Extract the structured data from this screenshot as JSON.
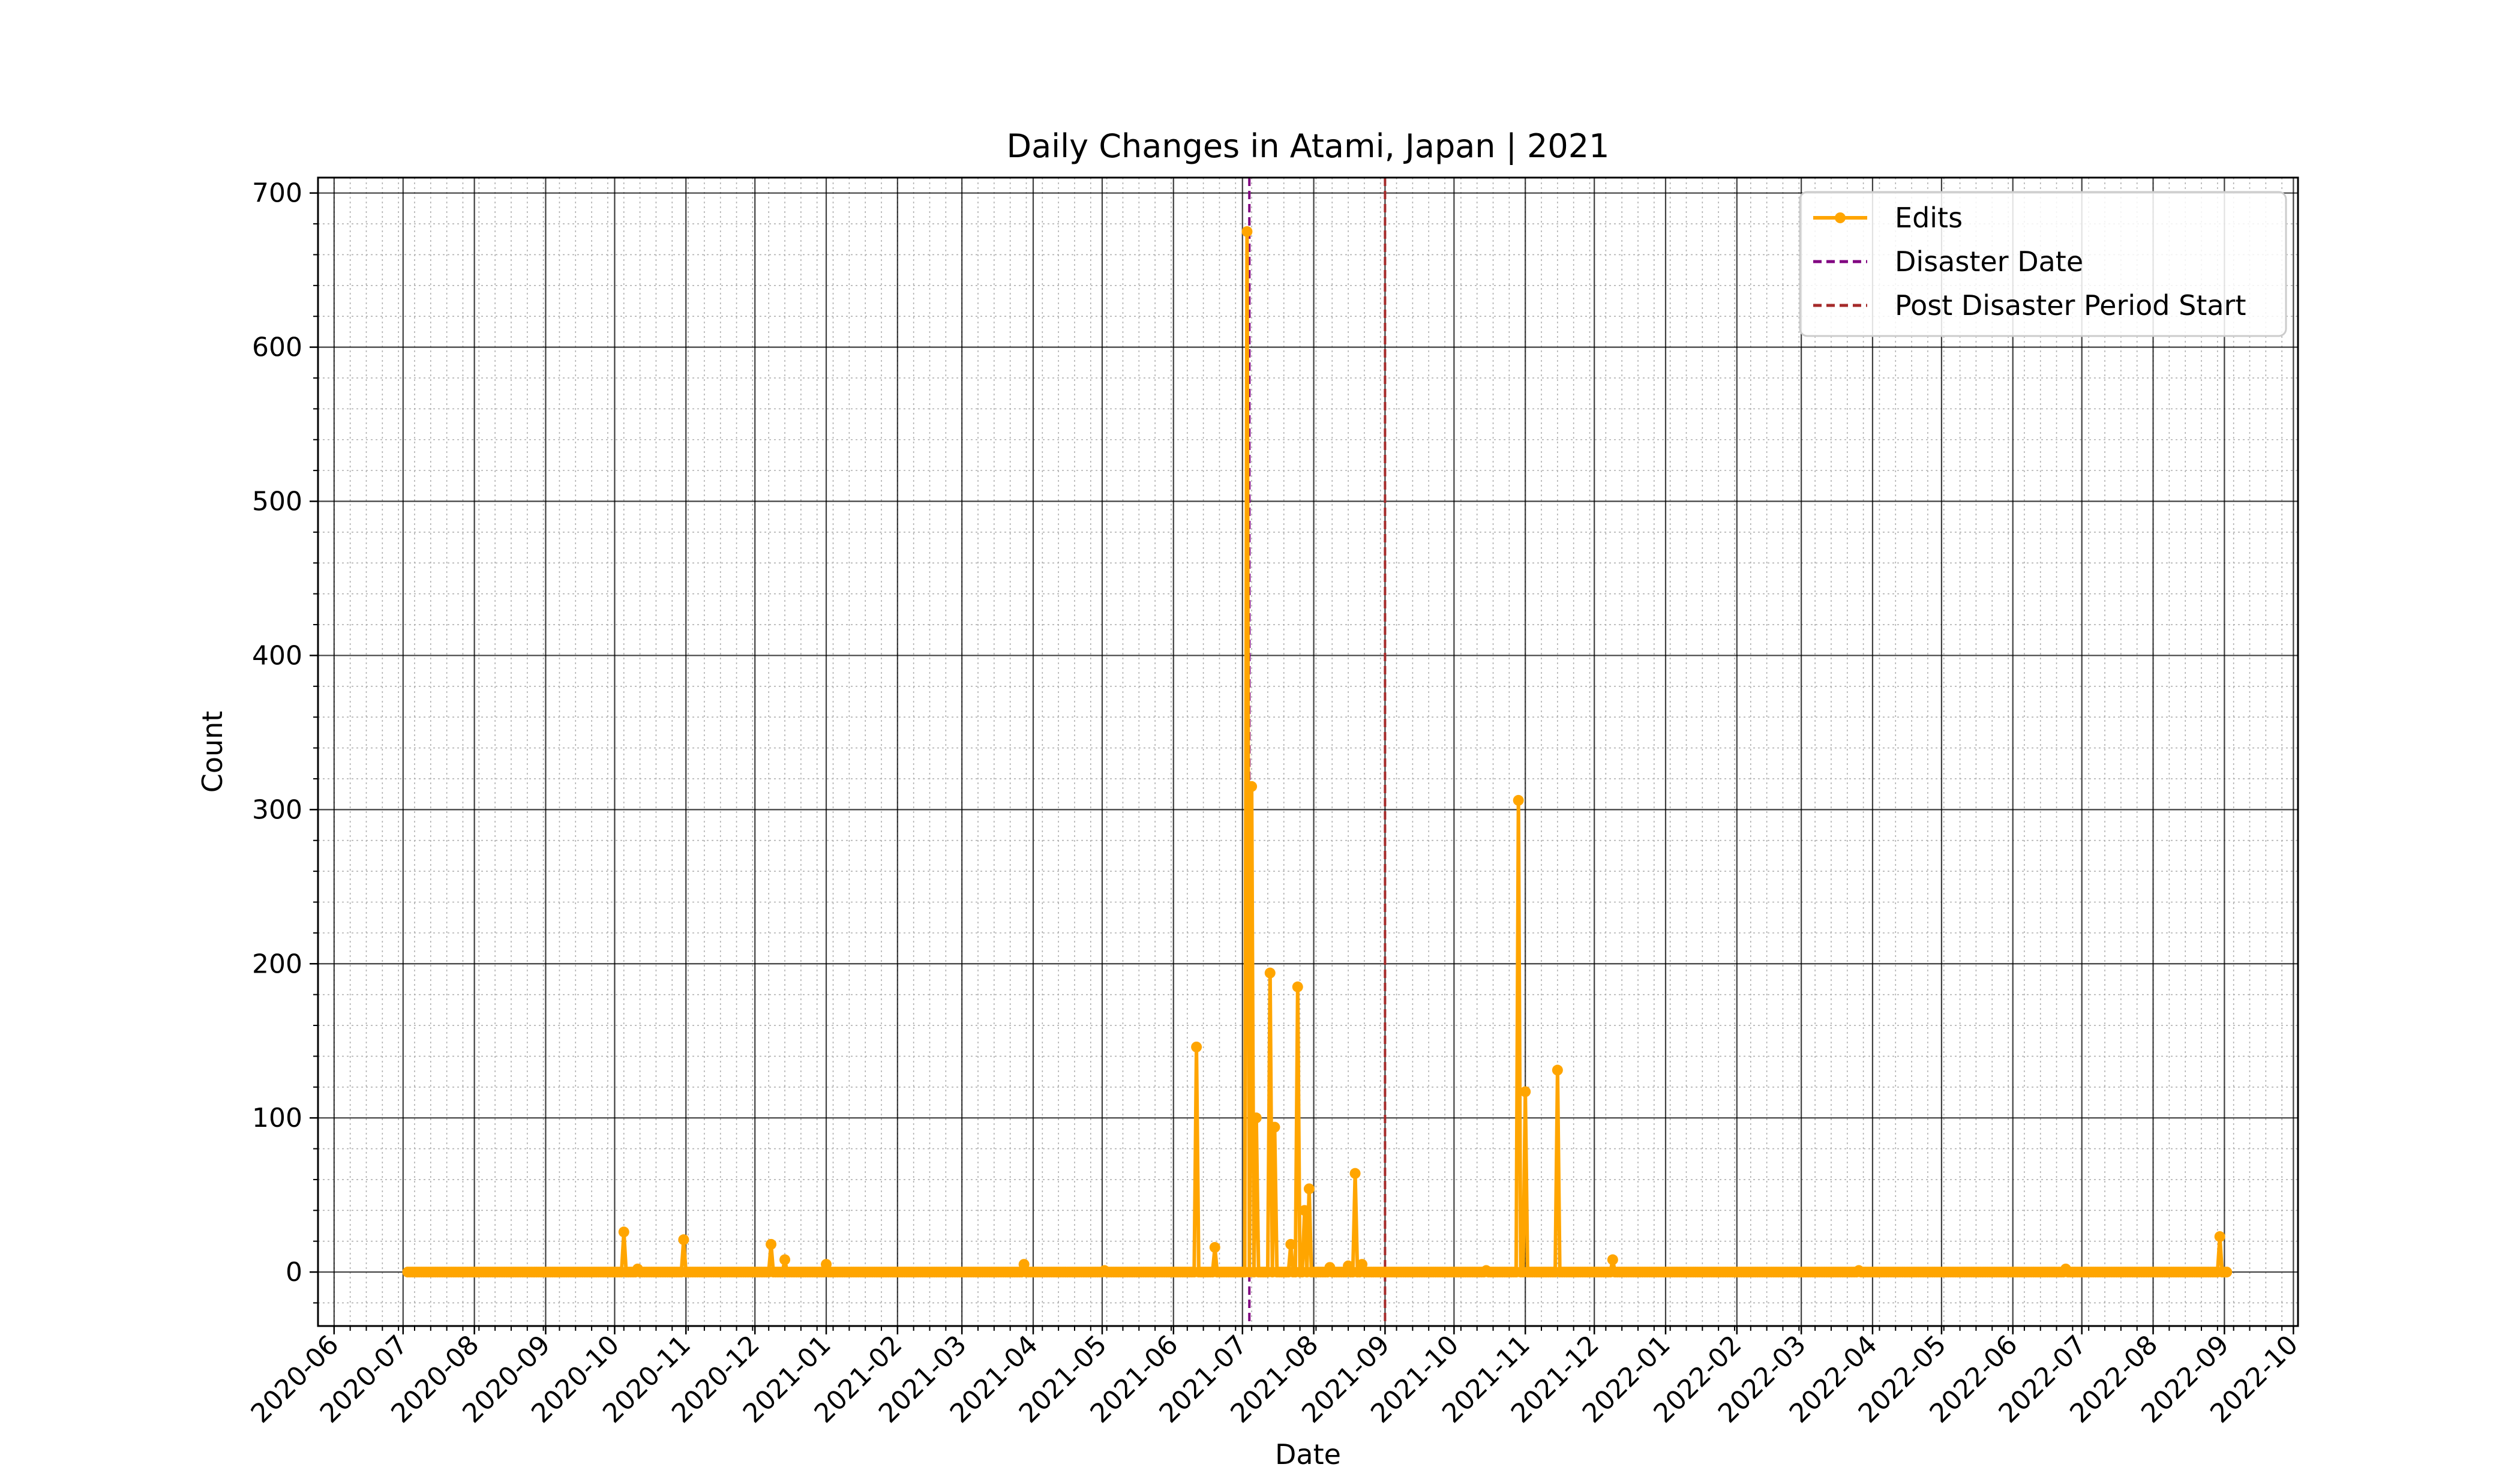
{
  "colors": {
    "edits": "#ffa500",
    "disaster": "#800080",
    "post": "#a52a2a",
    "grid_major": "#000000",
    "grid_minor": "#b0b0b0"
  },
  "chart_data": {
    "type": "line",
    "title": "Daily Changes in Atami, Japan | 2021",
    "xlabel": "Date",
    "ylabel": "Count",
    "xlim": [
      "2020-05-25",
      "2022-10-03"
    ],
    "ylim": [
      -35,
      710
    ],
    "yticks": [
      0,
      100,
      200,
      300,
      400,
      500,
      600,
      700
    ],
    "xticks": [
      "2020-06",
      "2020-07",
      "2020-08",
      "2020-09",
      "2020-10",
      "2020-11",
      "2020-12",
      "2021-01",
      "2021-02",
      "2021-03",
      "2021-04",
      "2021-05",
      "2021-06",
      "2021-07",
      "2021-08",
      "2021-09",
      "2021-10",
      "2021-11",
      "2021-12",
      "2022-01",
      "2022-02",
      "2022-03",
      "2022-04",
      "2022-05",
      "2022-06",
      "2022-07",
      "2022-08",
      "2022-09",
      "2022-10"
    ],
    "grid": true,
    "legend_position": "top-right",
    "series": [
      {
        "name": "Edits",
        "start": "2020-07-03",
        "end": "2022-09-02",
        "baseline": 0,
        "points": [
          {
            "x": "2020-10-05",
            "y": 26
          },
          {
            "x": "2020-10-11",
            "y": 2
          },
          {
            "x": "2020-10-31",
            "y": 21
          },
          {
            "x": "2020-12-08",
            "y": 18
          },
          {
            "x": "2020-12-14",
            "y": 8
          },
          {
            "x": "2021-01-01",
            "y": 5
          },
          {
            "x": "2021-03-28",
            "y": 5
          },
          {
            "x": "2021-05-02",
            "y": 1
          },
          {
            "x": "2021-06-11",
            "y": 146
          },
          {
            "x": "2021-06-19",
            "y": 16
          },
          {
            "x": "2021-07-03",
            "y": 675
          },
          {
            "x": "2021-07-05",
            "y": 315
          },
          {
            "x": "2021-07-07",
            "y": 100
          },
          {
            "x": "2021-07-13",
            "y": 194
          },
          {
            "x": "2021-07-15",
            "y": 94
          },
          {
            "x": "2021-07-22",
            "y": 18
          },
          {
            "x": "2021-07-25",
            "y": 185
          },
          {
            "x": "2021-07-28",
            "y": 40
          },
          {
            "x": "2021-07-30",
            "y": 54
          },
          {
            "x": "2021-08-08",
            "y": 3
          },
          {
            "x": "2021-08-16",
            "y": 4
          },
          {
            "x": "2021-08-19",
            "y": 64
          },
          {
            "x": "2021-08-22",
            "y": 5
          },
          {
            "x": "2021-10-15",
            "y": 1
          },
          {
            "x": "2021-10-29",
            "y": 306
          },
          {
            "x": "2021-11-01",
            "y": 117
          },
          {
            "x": "2021-11-15",
            "y": 131
          },
          {
            "x": "2021-12-09",
            "y": 8
          },
          {
            "x": "2022-03-26",
            "y": 1
          },
          {
            "x": "2022-06-24",
            "y": 2
          },
          {
            "x": "2022-08-30",
            "y": 23
          }
        ]
      },
      {
        "name": "Disaster Date",
        "type": "vline",
        "x": "2021-07-04"
      },
      {
        "name": "Post Disaster Period Start",
        "type": "vline",
        "x": "2021-09-01"
      }
    ]
  }
}
